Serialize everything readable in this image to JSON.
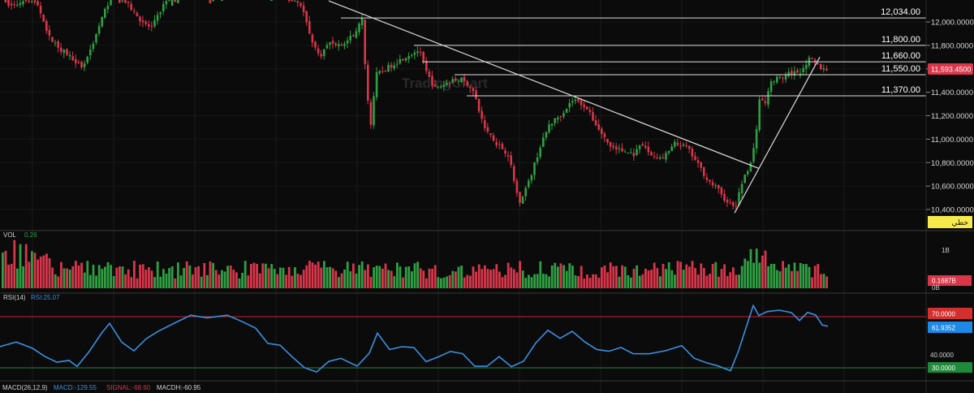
{
  "chart_data": {
    "type": "candlestick",
    "price_scale": {
      "ticks": [
        "12,000.0000",
        "11,800.0000",
        "11,600.0000",
        "11,400.0000",
        "11,200.0000",
        "11,000.0000",
        "10,800.0000",
        "10,600.0000",
        "10,400.0000"
      ],
      "tick_values": [
        12000,
        11800,
        11600,
        11400,
        11200,
        11000,
        10800,
        10600,
        10400
      ],
      "current_price_label": "11,593.4500",
      "current_price": 11593.45,
      "scale_mode_label": "خطي"
    },
    "horizontal_levels": [
      {
        "label": "12,034.00",
        "value": 12034,
        "x_from": 420
      },
      {
        "label": "11,800.00",
        "value": 11800,
        "x_from": 510
      },
      {
        "label": "11,660.00",
        "value": 11660,
        "x_from": 520
      },
      {
        "label": "11,550.00",
        "value": 11550,
        "x_from": 560
      },
      {
        "label": "11,370.00",
        "value": 11370,
        "x_from": 575
      }
    ],
    "trendlines": [
      {
        "from": {
          "x": 405,
          "price": 12180
        },
        "to": {
          "x": 935,
          "price": 10750
        }
      },
      {
        "from": {
          "x": 905,
          "price": 10370
        },
        "to": {
          "x": 1010,
          "price": 11700
        }
      }
    ],
    "watermark": "TradingChart",
    "price_range": [
      10300,
      12200
    ],
    "volume": {
      "title": "VOL",
      "value": "0.26",
      "ticks": [
        "1B",
        "0B"
      ],
      "current_label": "0.1687B"
    },
    "rsi": {
      "title": "RSI(14)",
      "value_label": "RSI:25.07",
      "overbought_label": "70.0000",
      "oversold_label": "30.0000",
      "mid_tick": "40.0000",
      "current_label": "61.9352",
      "overbought": 70,
      "oversold": 30,
      "current": 61.9352
    },
    "macd": {
      "title": "MACD(26,12,9)",
      "macd_label": "MACD:-129.55",
      "signal_label": "SIGNAL:-68.60",
      "hist_label": "MACDH:-60.95"
    },
    "colors": {
      "up": "#2ea043",
      "down": "#d9364a",
      "rsi_line": "#3b8fe0",
      "ob_line": "#c0262b",
      "os_line": "#1f8a3a",
      "level_line": "#e0e0e0",
      "price_badge": "#d9364a",
      "rsi_badge": "#1e88e5",
      "os_badge": "#1f8a3a",
      "ob_badge": "#d32f2f",
      "scale_badge": "#f5e94b"
    }
  }
}
